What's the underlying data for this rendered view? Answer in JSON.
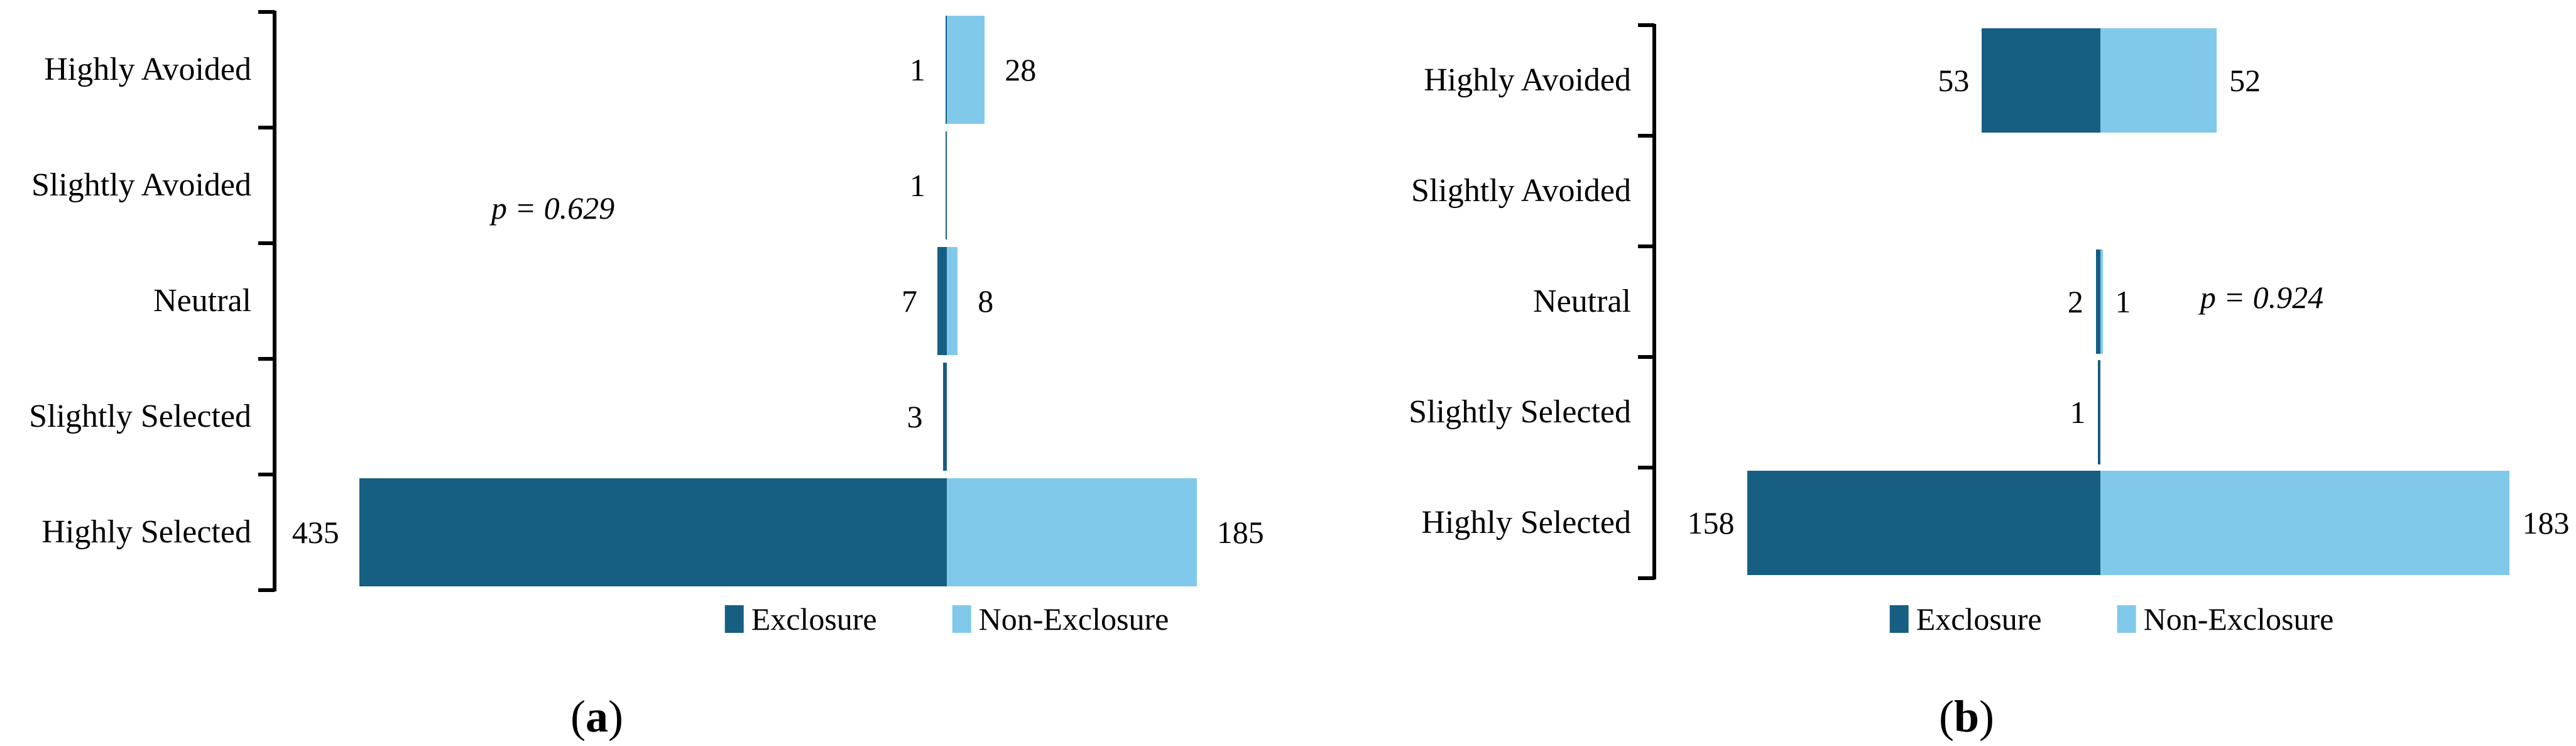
{
  "figure": {
    "background": "#ffffff",
    "axis_color": "#000000",
    "text_color": "#000000",
    "series_colors": {
      "Exclosure": "#165E82",
      "Non-Exclosure": "#81C9EB"
    }
  },
  "chart_data": [
    {
      "id": "a",
      "type": "bar",
      "variant": "diverging-horizontal-stacked",
      "caption": "(a)",
      "annotation": "p = 0.629",
      "legend_position": "bottom",
      "value_labels": "outside-ends",
      "grid": false,
      "categories": [
        "Highly Avoided",
        "Slightly Avoided",
        "Neutral",
        "Slightly Selected",
        "Highly Selected"
      ],
      "series": [
        {
          "name": "Exclosure",
          "side": "left",
          "color": "#165E82",
          "values": [
            1,
            1,
            7,
            3,
            435
          ]
        },
        {
          "name": "Non-Exclosure",
          "side": "right",
          "color": "#81C9EB",
          "values": [
            28,
            0,
            8,
            0,
            185
          ]
        }
      ]
    },
    {
      "id": "b",
      "type": "bar",
      "variant": "diverging-horizontal-stacked",
      "caption": "(b)",
      "annotation": "p = 0.924",
      "legend_position": "bottom",
      "value_labels": "outside-ends",
      "grid": false,
      "categories": [
        "Highly Avoided",
        "Slightly Avoided",
        "Neutral",
        "Slightly Selected",
        "Highly Selected"
      ],
      "series": [
        {
          "name": "Exclosure",
          "side": "left",
          "color": "#165E82",
          "values": [
            53,
            0,
            2,
            1,
            158
          ]
        },
        {
          "name": "Non-Exclosure",
          "side": "right",
          "color": "#81C9EB",
          "values": [
            52,
            0,
            1,
            0,
            183
          ]
        }
      ]
    }
  ]
}
